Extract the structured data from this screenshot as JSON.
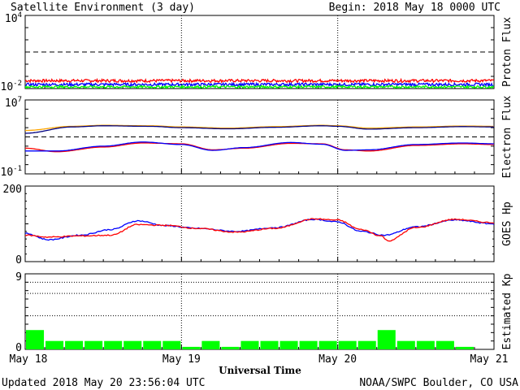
{
  "header": {
    "title": "Satellite Environment (3 day)",
    "begin": "Begin:  2018 May 18 0000 UTC"
  },
  "footer": {
    "updated": "Updated 2018 May 20 23:56:04 UTC",
    "credit": "NOAA/SWPC Boulder, CO USA"
  },
  "chart_data": [
    {
      "type": "line",
      "name": "proton-flux",
      "ylabel": "Proton Flux",
      "yscale": "log",
      "ylim": [
        0.01,
        10000
      ],
      "ytick_labels": [
        {
          "base": "10",
          "exp": "4",
          "value": 10000
        },
        {
          "base": "10",
          "exp": "-2",
          "value": 0.01
        }
      ],
      "threshold": 10,
      "series": [
        {
          "color": "#ff0000",
          "level": 0.045,
          "jitter": 0.012
        },
        {
          "color": "#0000ff",
          "level": 0.022,
          "jitter": 0.006
        },
        {
          "color": "#00ff00",
          "level": 0.014,
          "jitter": 0.003
        }
      ]
    },
    {
      "type": "line",
      "name": "electron-flux",
      "ylabel": "Electron Flux",
      "yscale": "log",
      "ylim": [
        0.1,
        10000000
      ],
      "ytick_labels": [
        {
          "base": "10",
          "exp": "7",
          "value": 10000000
        },
        {
          "base": "10",
          "exp": "-1",
          "value": 0.1
        }
      ],
      "threshold": 1000,
      "series": [
        {
          "color": "#ffa500",
          "x": [
            0,
            0.3,
            0.5,
            0.8,
            1.0,
            1.3,
            1.6,
            1.9,
            2.0,
            2.2,
            2.5,
            2.8,
            3.0
          ],
          "y": [
            5000,
            14000,
            18000,
            16000,
            12000,
            9000,
            13000,
            18000,
            16000,
            9000,
            12000,
            15000,
            14000
          ]
        },
        {
          "color": "#000080",
          "x": [
            0,
            0.3,
            0.5,
            0.8,
            1.0,
            1.3,
            1.6,
            1.9,
            2.0,
            2.2,
            2.5,
            2.8,
            3.0
          ],
          "y": [
            2500,
            12000,
            16000,
            14000,
            10000,
            7500,
            11000,
            16000,
            14000,
            7000,
            10000,
            13000,
            12000
          ]
        },
        {
          "color": "#ff0000",
          "x": [
            0,
            0.2,
            0.5,
            0.75,
            1.0,
            1.2,
            1.4,
            1.7,
            1.9,
            2.05,
            2.2,
            2.5,
            2.8,
            3.0
          ],
          "y": [
            60,
            25,
            80,
            220,
            180,
            40,
            60,
            200,
            180,
            40,
            30,
            120,
            180,
            150
          ]
        },
        {
          "color": "#0000ff",
          "x": [
            0,
            0.2,
            0.5,
            0.75,
            1.0,
            1.2,
            1.4,
            1.7,
            1.9,
            2.05,
            2.2,
            2.5,
            2.8,
            3.0
          ],
          "y": [
            30,
            30,
            100,
            280,
            150,
            35,
            70,
            250,
            160,
            35,
            40,
            150,
            220,
            180
          ]
        }
      ]
    },
    {
      "type": "line",
      "name": "goes-hp",
      "ylabel": "GOES Hp",
      "ylim": [
        0,
        200
      ],
      "ytick_labels": [
        {
          "base": "200",
          "exp": "",
          "value": 200
        },
        {
          "base": "0",
          "exp": "",
          "value": 0
        }
      ],
      "series": [
        {
          "color": "#0000ff",
          "x": [
            0,
            0.15,
            0.35,
            0.55,
            0.72,
            0.9,
            1.1,
            1.35,
            1.6,
            1.85,
            2.0,
            2.15,
            2.3,
            2.5,
            2.75,
            3.0
          ],
          "y": [
            75,
            58,
            70,
            85,
            108,
            95,
            88,
            80,
            90,
            112,
            105,
            80,
            70,
            92,
            110,
            100
          ]
        },
        {
          "color": "#ff0000",
          "x": [
            0,
            0.15,
            0.35,
            0.55,
            0.72,
            0.9,
            1.1,
            1.35,
            1.6,
            1.85,
            2.0,
            2.15,
            2.28,
            2.32,
            2.5,
            2.75,
            3.0
          ],
          "y": [
            70,
            65,
            68,
            70,
            98,
            96,
            88,
            78,
            88,
            113,
            110,
            85,
            68,
            55,
            90,
            112,
            103
          ]
        }
      ]
    },
    {
      "type": "bar",
      "name": "estimated-kp",
      "ylabel": "Estimated Kp",
      "ylim": [
        0,
        9
      ],
      "ytick_labels": [
        {
          "base": "9",
          "exp": "",
          "value": 9
        },
        {
          "base": "0",
          "exp": "",
          "value": 0
        }
      ],
      "dotted_levels": [
        4,
        6.67,
        8
      ],
      "bar_color": "#00ff00",
      "bin_hours": 3,
      "values": [
        2.3,
        1,
        1,
        1,
        1,
        1,
        1,
        1,
        0.3,
        1,
        0.3,
        1,
        1,
        1,
        1,
        1,
        1,
        1,
        2.3,
        1,
        1,
        1,
        0.3,
        0
      ]
    }
  ],
  "x_axis": {
    "label": "Universal Time",
    "tick_labels": [
      "May 18",
      "May 19",
      "May 20",
      "May 21"
    ],
    "days": 3
  }
}
